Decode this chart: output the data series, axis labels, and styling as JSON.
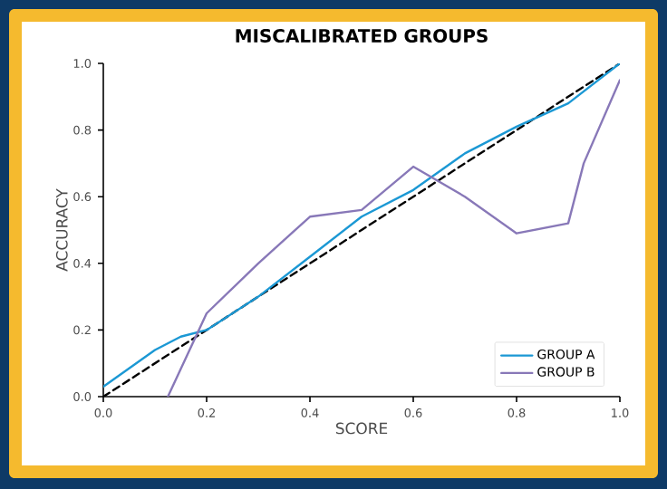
{
  "chart_data": {
    "type": "line",
    "title": "MISCALIBRATED GROUPS",
    "xlabel": "SCORE",
    "ylabel": "ACCURACY",
    "xlim": [
      0,
      1
    ],
    "ylim": [
      0,
      1
    ],
    "xticks": [
      {
        "value": 0,
        "label": "0.0"
      },
      0.2,
      0.4,
      0.6,
      0.8,
      {
        "value": 1,
        "label": "1.0"
      }
    ],
    "yticks": [
      {
        "value": 0,
        "label": "0.0"
      },
      0.2,
      0.4,
      0.6,
      0.8,
      {
        "value": 1,
        "label": "1.0"
      }
    ],
    "grid": false,
    "legend": "bottom right",
    "marker": "none",
    "series": [
      {
        "color": "#000000",
        "line_style": "dashed",
        "x": [
          0,
          1
        ],
        "values": [
          0,
          1
        ]
      },
      {
        "name": "GROUP A",
        "color": "#1b98d4",
        "line_style": "solid",
        "x": [
          0,
          0.1,
          0.15,
          0.2,
          0.3,
          0.4,
          0.5,
          0.6,
          0.7,
          0.8,
          0.9,
          1.0
        ],
        "values": [
          0.03,
          0.14,
          0.18,
          0.2,
          0.3,
          0.42,
          0.54,
          0.62,
          0.73,
          0.81,
          0.88,
          1.0
        ]
      },
      {
        "name": "GROUP B",
        "color": "#8878b8",
        "line_style": "solid",
        "x": [
          0.125,
          0.2,
          0.3,
          0.4,
          0.5,
          0.6,
          0.7,
          0.8,
          0.9,
          0.93,
          1.0
        ],
        "values": [
          0.0,
          0.25,
          0.4,
          0.54,
          0.56,
          0.69,
          0.6,
          0.49,
          0.52,
          0.7,
          0.95
        ]
      }
    ]
  }
}
